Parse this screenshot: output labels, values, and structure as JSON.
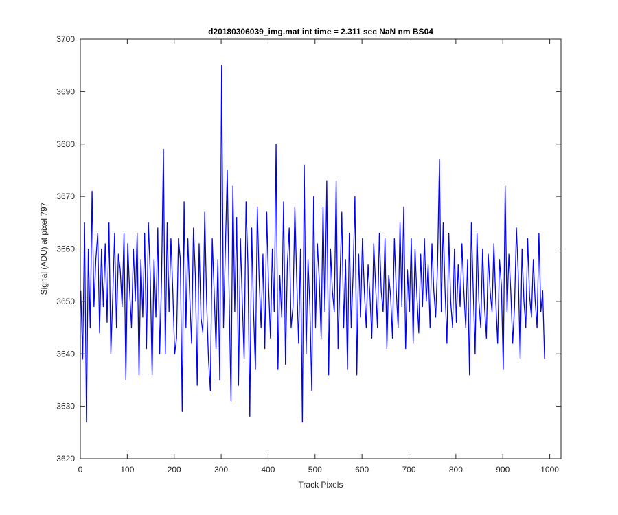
{
  "chart_data": {
    "type": "line",
    "title": "d20180306039_img.mat int time = 2.311 sec  NaN nm BS04",
    "xlabel": "Track Pixels",
    "ylabel": "Signal (ADU) at pixel 797",
    "xlim": [
      0,
      1024
    ],
    "ylim": [
      3620,
      3700
    ],
    "xticks": [
      0,
      100,
      200,
      300,
      400,
      500,
      600,
      700,
      800,
      900,
      1000
    ],
    "yticks": [
      3620,
      3630,
      3640,
      3650,
      3660,
      3670,
      3680,
      3690,
      3700
    ],
    "grid": false,
    "legend": "none",
    "series": [
      {
        "color": "#0000ff",
        "x_start": 1,
        "x_step": 4,
        "values": [
          3652,
          3639,
          3665,
          3627,
          3660,
          3645,
          3671,
          3649,
          3658,
          3663,
          3644,
          3660,
          3649,
          3661,
          3646,
          3665,
          3640,
          3651,
          3663,
          3645,
          3659,
          3656,
          3649,
          3663,
          3635,
          3661,
          3652,
          3645,
          3660,
          3650,
          3663,
          3636,
          3658,
          3647,
          3663,
          3641,
          3665,
          3655,
          3636,
          3658,
          3647,
          3664,
          3640,
          3654,
          3679,
          3640,
          3665,
          3648,
          3662,
          3652,
          3640,
          3643,
          3662,
          3658,
          3629,
          3669,
          3645,
          3662,
          3651,
          3642,
          3664,
          3655,
          3634,
          3661,
          3647,
          3644,
          3667,
          3650,
          3639,
          3633,
          3662,
          3652,
          3641,
          3658,
          3635,
          3695,
          3645,
          3660,
          3675,
          3651,
          3631,
          3672,
          3648,
          3666,
          3634,
          3662,
          3650,
          3639,
          3669,
          3657,
          3628,
          3664,
          3648,
          3637,
          3668,
          3654,
          3645,
          3659,
          3641,
          3667,
          3653,
          3643,
          3660,
          3648,
          3680,
          3637,
          3655,
          3647,
          3669,
          3638,
          3657,
          3664,
          3645,
          3649,
          3668,
          3654,
          3642,
          3660,
          3627,
          3676,
          3640,
          3658,
          3649,
          3633,
          3670,
          3645,
          3661,
          3654,
          3643,
          3668,
          3648,
          3673,
          3636,
          3660,
          3652,
          3648,
          3673,
          3641,
          3654,
          3667,
          3645,
          3658,
          3637,
          3663,
          3645,
          3655,
          3670,
          3636,
          3659,
          3647,
          3662,
          3652,
          3645,
          3657,
          3651,
          3643,
          3661,
          3653,
          3645,
          3663,
          3652,
          3648,
          3662,
          3641,
          3655,
          3651,
          3643,
          3662,
          3652,
          3645,
          3665,
          3649,
          3668,
          3641,
          3656,
          3648,
          3662,
          3642,
          3660,
          3651,
          3644,
          3659,
          3649,
          3662,
          3650,
          3657,
          3645,
          3661,
          3652,
          3647,
          3657,
          3677,
          3648,
          3665,
          3652,
          3642,
          3663,
          3650,
          3645,
          3660,
          3646,
          3657,
          3649,
          3661,
          3652,
          3645,
          3658,
          3636,
          3665,
          3652,
          3640,
          3663,
          3650,
          3645,
          3660,
          3649,
          3643,
          3659,
          3652,
          3648,
          3661,
          3650,
          3642,
          3658,
          3653,
          3637,
          3672,
          3648,
          3659,
          3652,
          3642,
          3649,
          3664,
          3655,
          3639,
          3660,
          3650,
          3645,
          3662,
          3651,
          3647,
          3658,
          3650,
          3645,
          3663,
          3648,
          3652,
          3639
        ]
      }
    ]
  }
}
